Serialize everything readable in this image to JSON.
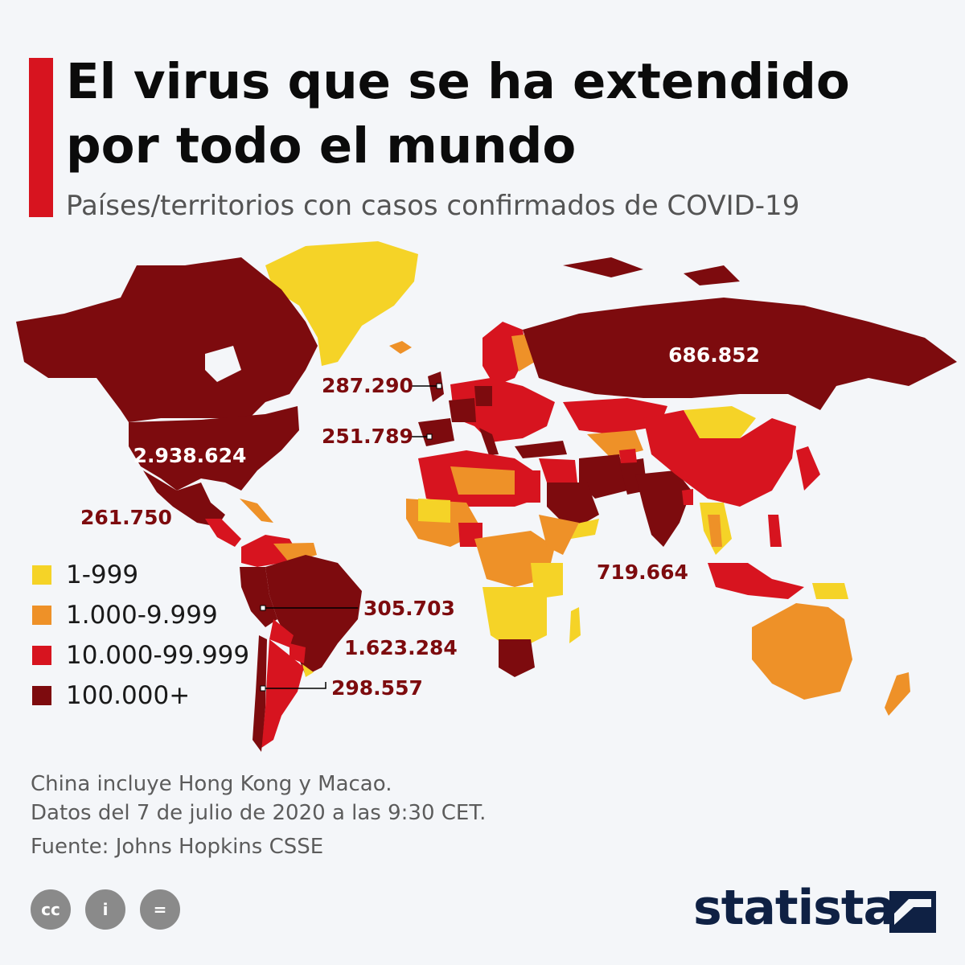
{
  "header": {
    "title": "El virus que se ha extendido por todo el mundo",
    "subtitle": "Países/territorios con casos confirmados de COVID-19"
  },
  "colors": {
    "accent": "#d7141f",
    "tier_1": "#f5d327",
    "tier_2": "#ee9128",
    "tier_3": "#d7141f",
    "tier_4": "#7d0b0e",
    "no_data": "#c8c8c8",
    "label_dark": "#7d0b0e",
    "label_light": "#ffffff"
  },
  "legend": {
    "items": [
      {
        "label": "1-999",
        "color": "#f5d327"
      },
      {
        "label": "1.000-9.999",
        "color": "#ee9128"
      },
      {
        "label": "10.000-99.999",
        "color": "#d7141f"
      },
      {
        "label": "100.000+",
        "color": "#7d0b0e"
      }
    ]
  },
  "map": {
    "callouts": {
      "usa": "2.938.624",
      "russia": "686.852",
      "uk": "287.290",
      "spain": "251.789",
      "mexico": "261.750",
      "india": "719.664",
      "peru": "305.703",
      "brazil": "1.623.284",
      "chile": "298.557"
    }
  },
  "notes": {
    "line1": "China incluye Hong Kong y Macao.",
    "line2": "Datos del 7 de julio de 2020 a las 9:30 CET.",
    "source": "Fuente: Johns Hopkins CSSE"
  },
  "footer": {
    "logo": "statista",
    "icons": [
      "creative-commons-icon",
      "attribution-icon",
      "no-derivatives-icon"
    ],
    "icon_glyphs": [
      "cc",
      "i",
      "="
    ]
  }
}
